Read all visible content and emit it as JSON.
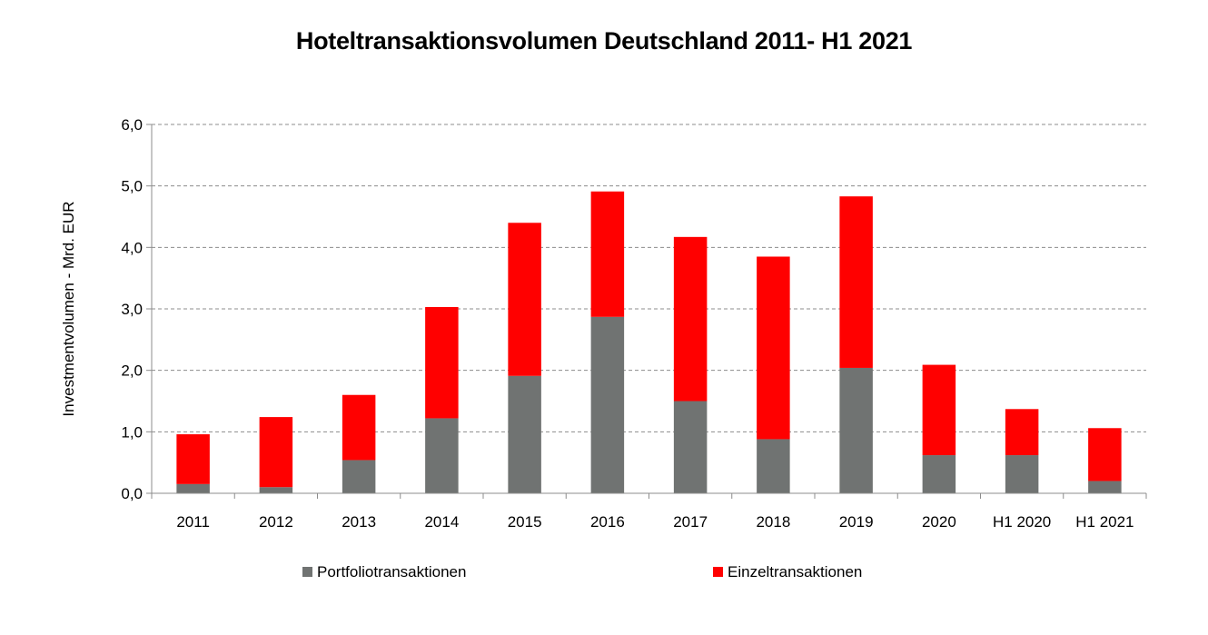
{
  "chart_data": {
    "type": "bar",
    "stacked": true,
    "title": "Hoteltransaktionsvolumen Deutschland 2011- H1 2021",
    "xlabel": "",
    "ylabel": "Investmentvolumen  - Mrd. EUR",
    "ylim": [
      0,
      6
    ],
    "yticks": [
      "0,0",
      "1,0",
      "2,0",
      "3,0",
      "4,0",
      "5,0",
      "6,0"
    ],
    "grid": true,
    "legend_position": "bottom",
    "categories": [
      "2011",
      "2012",
      "2013",
      "2014",
      "2015",
      "2016",
      "2017",
      "2018",
      "2019",
      "2020",
      "H1 2020",
      "H1 2021"
    ],
    "series": [
      {
        "name": "Portfoliotransaktionen",
        "color": "#707372",
        "values": [
          0.15,
          0.1,
          0.54,
          1.22,
          1.91,
          2.87,
          1.5,
          0.88,
          2.04,
          0.62,
          0.62,
          0.2
        ]
      },
      {
        "name": "Einzeltransaktionen",
        "color": "#ff0000",
        "values": [
          0.81,
          1.14,
          1.06,
          1.81,
          2.49,
          2.04,
          2.67,
          2.97,
          2.79,
          1.47,
          0.75,
          0.86
        ]
      }
    ]
  }
}
